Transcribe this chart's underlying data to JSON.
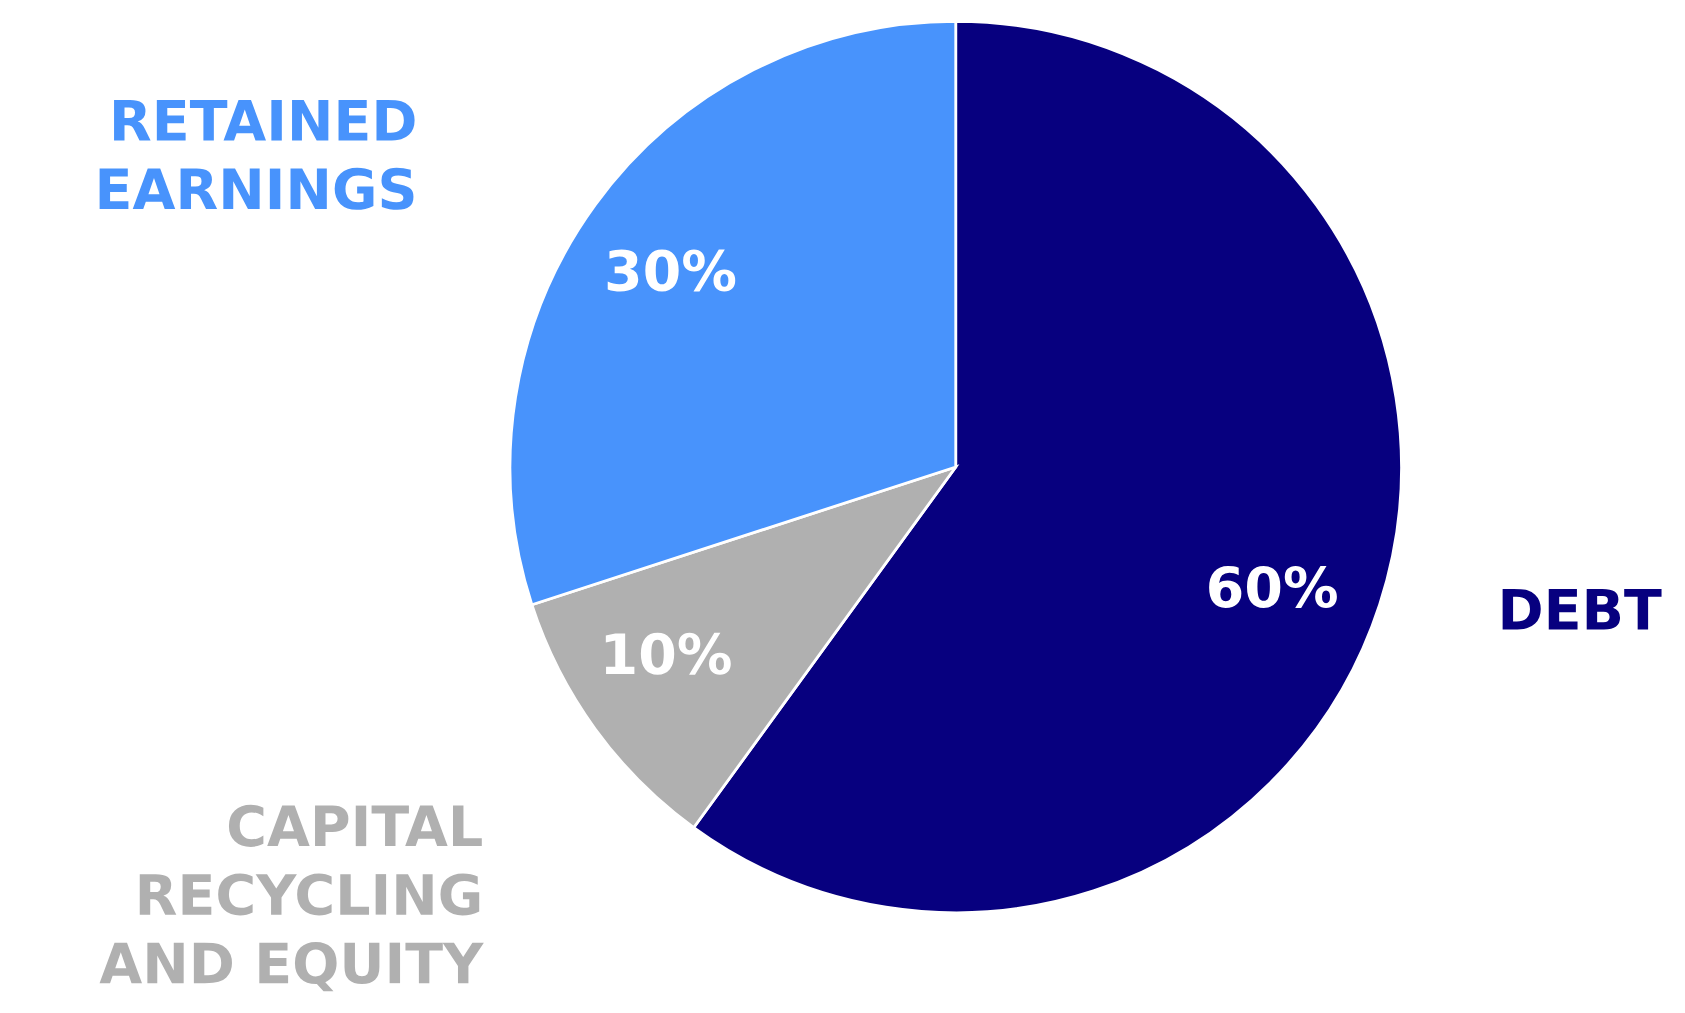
{
  "chart_data": {
    "type": "pie",
    "categories": [
      "DEBT",
      "CAPITAL\nRECYCLING\nAND EQUITY",
      "RETAINED\nEARNINGS"
    ],
    "values": [
      60,
      10,
      30
    ],
    "colors": [
      "#07007f",
      "#b0b0b0",
      "#4893fc"
    ],
    "value_labels": [
      "60%",
      "10%",
      "30%"
    ],
    "legend": false
  }
}
